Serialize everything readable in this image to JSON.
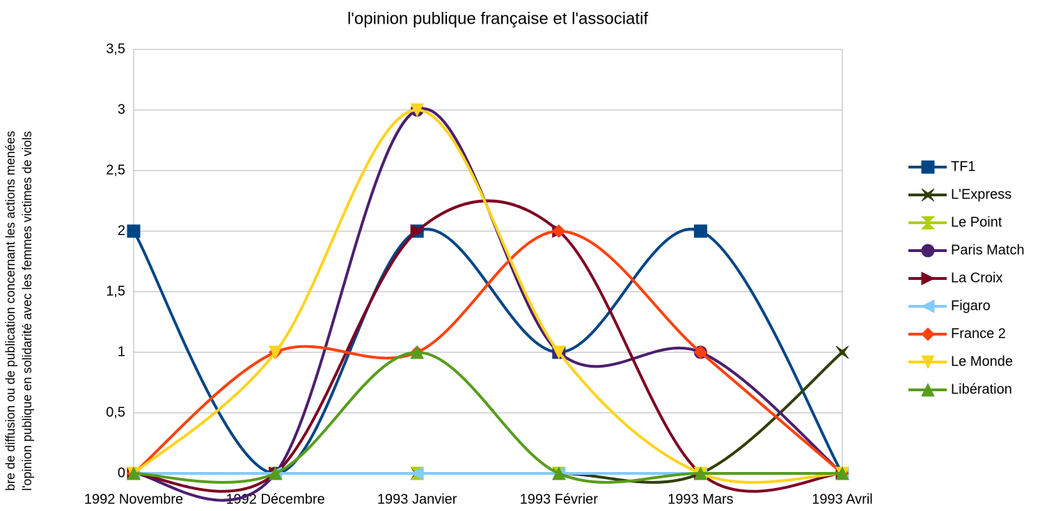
{
  "chart_data": {
    "type": "line",
    "title": "l'opinion publique française et l'associatif",
    "y_label": [
      "bre de diffusion ou de publication concernant les actions menées",
      "l'opinion publique en solidarité avec les femmes victimes de viols"
    ],
    "categories": [
      "1992 Novembre",
      "1992 Décembre",
      "1993 Janvier",
      "1993 Février",
      "1993 Mars",
      "1993 Avril"
    ],
    "series": [
      {
        "name": "TF1",
        "color": "#004586",
        "marker": "square",
        "values": [
          2,
          0,
          2,
          1,
          2,
          0
        ]
      },
      {
        "name": "L'Express",
        "color": "#314004",
        "marker": "cross",
        "values": [
          0,
          0,
          0,
          0,
          0,
          1
        ]
      },
      {
        "name": "Le Point",
        "color": "#aecf00",
        "marker": "hourglass",
        "values": [
          0,
          0,
          0,
          0,
          0,
          0
        ]
      },
      {
        "name": "Paris Match",
        "color": "#4b1f6f",
        "marker": "circle",
        "values": [
          0,
          0,
          3,
          1,
          1,
          0
        ]
      },
      {
        "name": "La Croix",
        "color": "#7e0021",
        "marker": "right",
        "values": [
          0,
          0,
          2,
          2,
          0,
          0
        ]
      },
      {
        "name": "Figaro",
        "color": "#83caff",
        "marker": "left",
        "values": [
          0,
          0,
          0,
          0,
          0,
          0
        ]
      },
      {
        "name": "France 2",
        "color": "#ff420e",
        "marker": "diamond",
        "values": [
          0,
          1,
          1,
          2,
          1,
          0
        ]
      },
      {
        "name": "Le Monde",
        "color": "#ffd320",
        "marker": "down",
        "values": [
          0,
          1,
          3,
          1,
          0,
          0
        ]
      },
      {
        "name": "Libération",
        "color": "#579d1c",
        "marker": "up",
        "values": [
          0,
          0,
          1,
          0,
          0,
          0
        ]
      }
    ],
    "ylim": [
      0,
      3.5
    ],
    "yticks": [
      0,
      {
        "value": 0.5,
        "label": "0,5"
      },
      1,
      {
        "value": 1.5,
        "label": "1,5"
      },
      2,
      {
        "value": 2.5,
        "label": "2,5"
      },
      3,
      {
        "value": 3.5,
        "label": "3,5"
      }
    ],
    "grid": true,
    "smooth": true,
    "legend": "right"
  }
}
